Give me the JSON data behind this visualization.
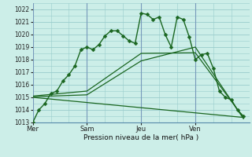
{
  "background_color": "#cceee8",
  "grid_color": "#99cccc",
  "line_color": "#1a6620",
  "xlabel": "Pression niveau de la mer( hPa )",
  "ylim": [
    1013,
    1022.5
  ],
  "yticks": [
    1013,
    1014,
    1015,
    1016,
    1017,
    1018,
    1019,
    1020,
    1021,
    1022
  ],
  "day_labels": [
    "Mer",
    "Sam",
    "Jeu",
    "Ven"
  ],
  "day_positions": [
    0,
    9,
    18,
    27
  ],
  "xlim": [
    0,
    36
  ],
  "series": [
    {
      "x": [
        0,
        1,
        2,
        3,
        4,
        5,
        6,
        7,
        8,
        9,
        10,
        11,
        12,
        13,
        14,
        15,
        16,
        17,
        18,
        19,
        20,
        21,
        22,
        23,
        24,
        25,
        26,
        27,
        28,
        29,
        30,
        31,
        32,
        33,
        34,
        35
      ],
      "y": [
        1013.0,
        1014.0,
        1014.5,
        1015.3,
        1015.5,
        1016.3,
        1016.8,
        1017.5,
        1018.8,
        1019.0,
        1018.8,
        1019.2,
        1019.9,
        1020.3,
        1020.3,
        1019.9,
        1019.5,
        1019.3,
        1021.7,
        1021.6,
        1021.2,
        1021.4,
        1020.0,
        1019.0,
        1021.4,
        1021.2,
        1019.8,
        1018.0,
        1018.4,
        1018.5,
        1017.3,
        1015.5,
        1015.0,
        1014.8,
        1014.0,
        1013.5
      ],
      "has_markers": true
    },
    {
      "x": [
        0,
        9,
        18,
        27,
        35
      ],
      "y": [
        1015.1,
        1015.5,
        1018.5,
        1018.55,
        1013.4
      ],
      "has_markers": false
    },
    {
      "x": [
        0,
        9,
        18,
        27,
        35
      ],
      "y": [
        1015.05,
        1015.2,
        1017.9,
        1019.0,
        1013.3
      ],
      "has_markers": false
    },
    {
      "x": [
        0,
        35
      ],
      "y": [
        1015.0,
        1013.4
      ],
      "has_markers": false
    }
  ]
}
